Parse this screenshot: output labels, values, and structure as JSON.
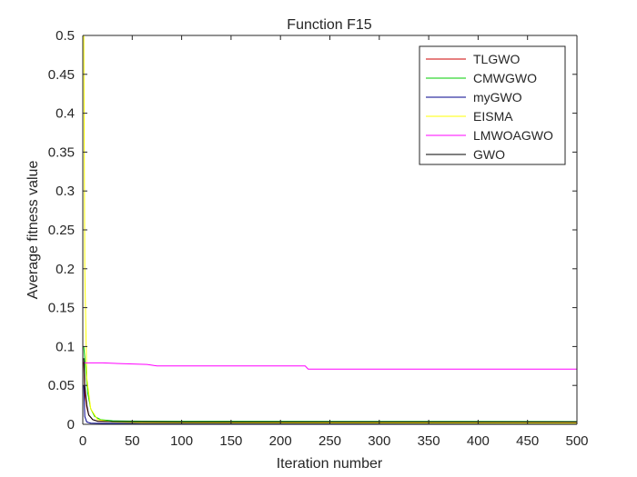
{
  "chart_data": {
    "type": "line",
    "title": "Function F15",
    "xlabel": "Iteration number",
    "ylabel": "Average fitness value",
    "xlim": [
      0,
      500
    ],
    "ylim": [
      0,
      0.5
    ],
    "xticks": [
      0,
      50,
      100,
      150,
      200,
      250,
      300,
      350,
      400,
      450,
      500
    ],
    "yticks": [
      0,
      0.05,
      0.1,
      0.15,
      0.2,
      0.25,
      0.3,
      0.35,
      0.4,
      0.45,
      0.5
    ],
    "xtick_labels": [
      "0",
      "50",
      "100",
      "150",
      "200",
      "250",
      "300",
      "350",
      "400",
      "450",
      "500"
    ],
    "ytick_labels": [
      "0",
      "0.05",
      "0.1",
      "0.15",
      "0.2",
      "0.25",
      "0.3",
      "0.35",
      "0.4",
      "0.45",
      "0.5"
    ],
    "grid": false,
    "legend_position": "top-right",
    "series": [
      {
        "name": "TLGWO",
        "color": "#cc0000",
        "points": [
          [
            1,
            0.08
          ],
          [
            2,
            0.04
          ],
          [
            4,
            0.022
          ],
          [
            6,
            0.012
          ],
          [
            10,
            0.006
          ],
          [
            15,
            0.004
          ],
          [
            25,
            0.0035
          ],
          [
            50,
            0.0032
          ],
          [
            100,
            0.003
          ],
          [
            500,
            0.0028
          ]
        ]
      },
      {
        "name": "CMWGWO",
        "color": "#00cc00",
        "points": [
          [
            1,
            0.1
          ],
          [
            3,
            0.07
          ],
          [
            5,
            0.04
          ],
          [
            8,
            0.02
          ],
          [
            12,
            0.01
          ],
          [
            18,
            0.006
          ],
          [
            30,
            0.0045
          ],
          [
            60,
            0.004
          ],
          [
            100,
            0.0038
          ],
          [
            500,
            0.0035
          ]
        ]
      },
      {
        "name": "myGWO",
        "color": "#00008b",
        "points": [
          [
            1,
            0.05
          ],
          [
            2,
            0.01
          ],
          [
            4,
            0.003
          ],
          [
            8,
            0.0015
          ],
          [
            20,
            0.0012
          ],
          [
            50,
            0.001
          ],
          [
            500,
            0.0008
          ]
        ]
      },
      {
        "name": "EISMA",
        "color": "#ffff00",
        "points": [
          [
            1,
            0.5
          ],
          [
            2,
            0.2
          ],
          [
            4,
            0.06
          ],
          [
            8,
            0.02
          ],
          [
            15,
            0.006
          ],
          [
            30,
            0.003
          ],
          [
            60,
            0.002
          ],
          [
            500,
            0.0015
          ]
        ]
      },
      {
        "name": "LMWOAGWO",
        "color": "#ff00ff",
        "points": [
          [
            1,
            0.08
          ],
          [
            2,
            0.079
          ],
          [
            20,
            0.079
          ],
          [
            40,
            0.078
          ],
          [
            65,
            0.077
          ],
          [
            75,
            0.075
          ],
          [
            225,
            0.075
          ],
          [
            228,
            0.071
          ],
          [
            500,
            0.071
          ]
        ]
      },
      {
        "name": "GWO",
        "color": "#000000",
        "points": [
          [
            1,
            0.085
          ],
          [
            2,
            0.05
          ],
          [
            4,
            0.025
          ],
          [
            6,
            0.012
          ],
          [
            10,
            0.006
          ],
          [
            15,
            0.004
          ],
          [
            30,
            0.0035
          ],
          [
            100,
            0.003
          ],
          [
            500,
            0.003
          ]
        ]
      }
    ]
  }
}
